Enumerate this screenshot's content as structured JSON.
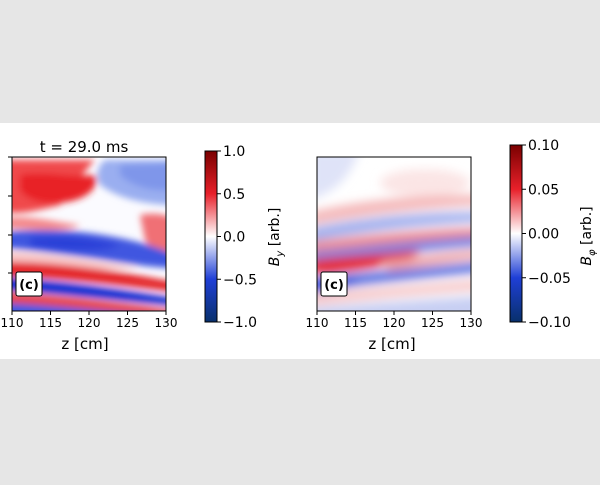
{
  "chart_data": [
    {
      "type": "heatmap",
      "title": "t = 29.0 ms",
      "xlabel": "z [cm]",
      "ylabel": "",
      "xlim": [
        110,
        130
      ],
      "xticks": [
        "110",
        "115",
        "120",
        "125",
        "130"
      ],
      "panel_label": "(c)",
      "colorbar": {
        "label_symbol": "B",
        "label_subscript": "y",
        "label_suffix": " [arb.]",
        "range": [
          -1.0,
          1.0
        ],
        "ticks": [
          "1.0",
          "0.5",
          "0.0",
          "−0.5",
          "−1.0"
        ],
        "colormap": [
          "#08306b",
          "#1f3fd6",
          "#ffffff",
          "#e8202a",
          "#7a0000"
        ]
      }
    },
    {
      "type": "heatmap",
      "title": "",
      "xlabel": "z [cm]",
      "ylabel": "",
      "xlim": [
        110,
        130
      ],
      "xticks": [
        "110",
        "115",
        "120",
        "125",
        "130"
      ],
      "panel_label": "(c)",
      "colorbar": {
        "label_symbol": "B",
        "label_subscript": "φ",
        "label_suffix": " [arb.]",
        "range": [
          -0.1,
          0.1
        ],
        "ticks": [
          "0.10",
          "0.05",
          "0.00",
          "−0.05",
          "−0.10"
        ],
        "colormap": [
          "#08306b",
          "#1f3fd6",
          "#ffffff",
          "#e8202a",
          "#7a0000"
        ]
      }
    }
  ]
}
